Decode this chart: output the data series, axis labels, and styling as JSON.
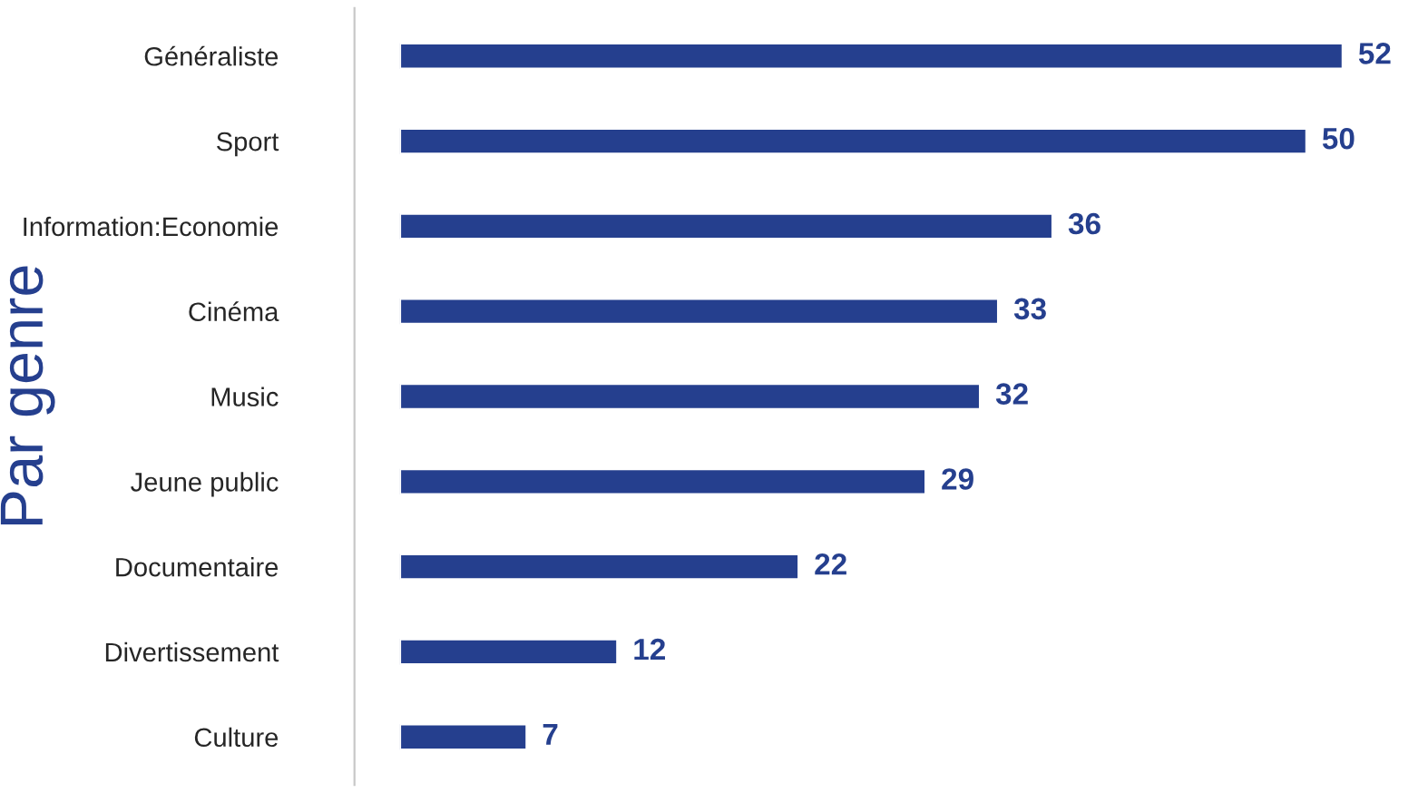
{
  "chart_data": {
    "type": "bar",
    "orientation": "horizontal",
    "ylabel": "Par genre",
    "categories": [
      "Généraliste",
      "Sport",
      "Information:Economie",
      "Cinéma",
      "Music",
      "Jeune public",
      "Documentaire",
      "Divertissement",
      "Culture"
    ],
    "values": [
      52,
      50,
      36,
      33,
      32,
      29,
      22,
      12,
      7
    ],
    "color": "#253f8e",
    "data_labels": true,
    "grid": false,
    "legend": false
  }
}
